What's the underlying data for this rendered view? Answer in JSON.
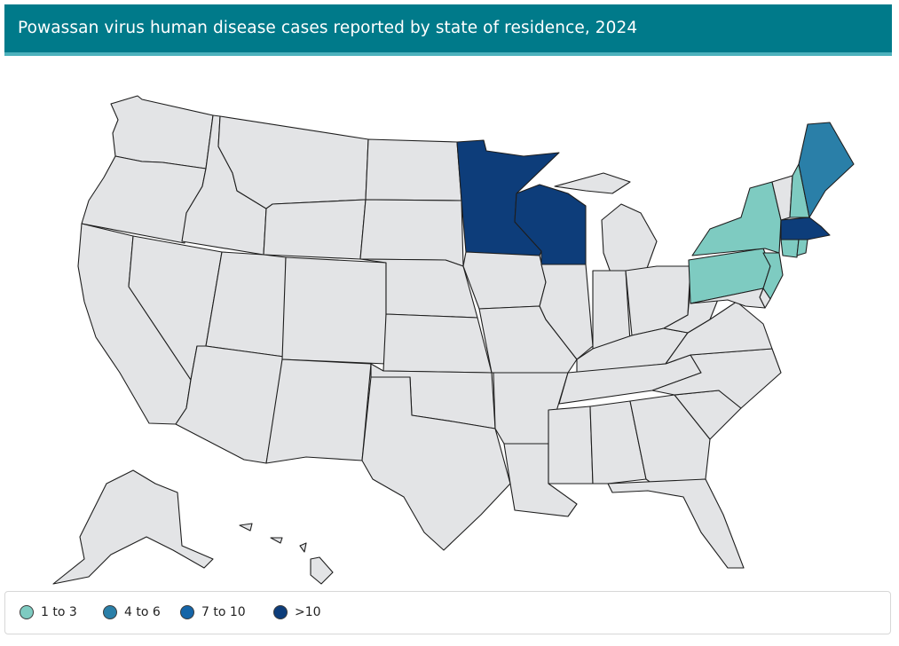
{
  "title": "Powassan virus human disease cases reported by state of residence, 2024",
  "colors": {
    "header_bg": "#007a8a",
    "header_underline": "#4db2bd",
    "no_data": "#e3e4e6",
    "border": "#1e1e1e"
  },
  "legend": {
    "items": [
      {
        "label": "1 to 3",
        "color": "#7ecbc1"
      },
      {
        "label": "4 to 6",
        "color": "#2a7fa8"
      },
      {
        "label": "7 to 10",
        "color": "#1565a8"
      },
      {
        "label": ">10",
        "color": "#0d3d7a"
      }
    ]
  },
  "state_categories": {
    "Minnesota": ">10",
    "Wisconsin": ">10",
    "Massachusetts": ">10",
    "Maine": "4 to 6",
    "New York": "1 to 3",
    "Pennsylvania": "1 to 3",
    "New Jersey": "1 to 3",
    "New Hampshire": "1 to 3",
    "Connecticut": "1 to 3",
    "Rhode Island": "1 to 3"
  }
}
